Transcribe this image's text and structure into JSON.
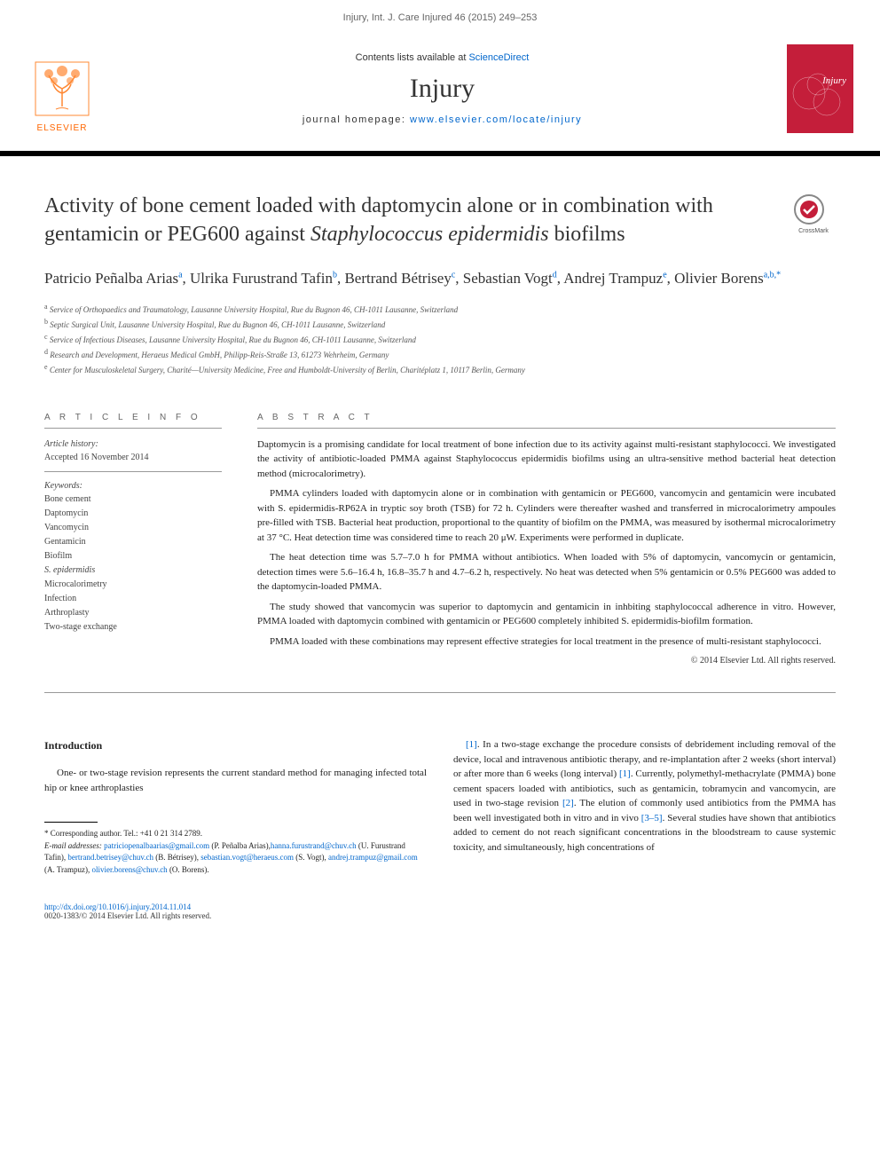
{
  "masthead": {
    "citation": "Injury, Int. J. Care Injured 46 (2015) 249–253"
  },
  "header": {
    "contents_prefix": "Contents lists available at ",
    "contents_link": "ScienceDirect",
    "journal_title": "Injury",
    "homepage_prefix": "journal homepage: ",
    "homepage_url": "www.elsevier.com/locate/injury",
    "elsevier_label": "ELSEVIER",
    "cover_text": "Injury"
  },
  "article": {
    "title_part1": "Activity of bone cement loaded with daptomycin alone or in combination with gentamicin or PEG600 against ",
    "title_italic": "Staphylococcus epidermidis",
    "title_part2": " biofilms",
    "crossmark_label": "CrossMark"
  },
  "authors": [
    {
      "name": "Patricio Peñalba Arias",
      "aff": "a"
    },
    {
      "name": "Ulrika Furustrand Tafin",
      "aff": "b"
    },
    {
      "name": "Bertrand Bétrisey",
      "aff": "c"
    },
    {
      "name": "Sebastian Vogt",
      "aff": "d"
    },
    {
      "name": "Andrej Trampuz",
      "aff": "e"
    },
    {
      "name": "Olivier Borens",
      "aff": "a,b,",
      "corr": "*"
    }
  ],
  "affiliations": [
    {
      "key": "a",
      "text": "Service of Orthopaedics and Traumatology, Lausanne University Hospital, Rue du Bugnon 46, CH-1011 Lausanne, Switzerland"
    },
    {
      "key": "b",
      "text": "Septic Surgical Unit, Lausanne University Hospital, Rue du Bugnon 46, CH-1011 Lausanne, Switzerland"
    },
    {
      "key": "c",
      "text": "Service of Infectious Diseases, Lausanne University Hospital, Rue du Bugnon 46, CH-1011 Lausanne, Switzerland"
    },
    {
      "key": "d",
      "text": "Research and Development, Heraeus Medical GmbH, Philipp-Reis-Straße 13, 61273 Wehrheim, Germany"
    },
    {
      "key": "e",
      "text": "Center for Musculoskeletal Surgery, Charité—University Medicine, Free and Humboldt-University of Berlin, Charitéplatz 1, 10117 Berlin, Germany"
    }
  ],
  "article_info": {
    "heading": "A R T I C L E  I N F O",
    "history_label": "Article history:",
    "accepted": "Accepted 16 November 2014",
    "keywords_label": "Keywords:",
    "keywords": [
      "Bone cement",
      "Daptomycin",
      "Vancomycin",
      "Gentamicin",
      "Biofilm",
      "S. epidermidis",
      "Microcalorimetry",
      "Infection",
      "Arthroplasty",
      "Two-stage exchange"
    ]
  },
  "abstract": {
    "heading": "A B S T R A C T",
    "p1": "Daptomycin is a promising candidate for local treatment of bone infection due to its activity against multi-resistant staphylococci. We investigated the activity of antibiotic-loaded PMMA against Staphylococcus epidermidis biofilms using an ultra-sensitive method bacterial heat detection method (microcalorimetry).",
    "p2": "PMMA cylinders loaded with daptomycin alone or in combination with gentamicin or PEG600, vancomycin and gentamicin were incubated with S. epidermidis-RP62A in tryptic soy broth (TSB) for 72 h. Cylinders were thereafter washed and transferred in microcalorimetry ampoules pre-filled with TSB. Bacterial heat production, proportional to the quantity of biofilm on the PMMA, was measured by isothermal microcalorimetry at 37 °C. Heat detection time was considered time to reach 20 μW. Experiments were performed in duplicate.",
    "p3": "The heat detection time was 5.7–7.0 h for PMMA without antibiotics. When loaded with 5% of daptomycin, vancomycin or gentamicin, detection times were 5.6–16.4 h, 16.8–35.7 h and 4.7–6.2 h, respectively. No heat was detected when 5% gentamicin or 0.5% PEG600 was added to the daptomycin-loaded PMMA.",
    "p4": "The study showed that vancomycin was superior to daptomycin and gentamicin in inhbiting staphylococcal adherence in vitro. However, PMMA loaded with daptomycin combined with gentamicin or PEG600 completely inhibited S. epidermidis-biofilm formation.",
    "p5": "PMMA loaded with these combinations may represent effective strategies for local treatment in the presence of multi-resistant staphylococci.",
    "copyright": "© 2014 Elsevier Ltd. All rights reserved."
  },
  "body": {
    "intro_heading": "Introduction",
    "col1_p1": "One- or two-stage revision represents the current standard method for managing infected total hip or knee arthroplasties",
    "col2_p1": ". In a two-stage exchange the procedure consists of debridement including removal of the device, local and intravenous antibiotic therapy, and re-implantation after 2 weeks (short interval) or after more than 6 weeks (long interval) ",
    "col2_p2": ". Currently, polymethyl-methacrylate (PMMA) bone cement spacers loaded with antibiotics, such as gentamicin, tobramycin and vancomycin, are used in two-stage revision ",
    "col2_p3": ". The elution of commonly used antibiotics from the PMMA has been well investigated both in vitro and in vivo ",
    "col2_p4": ". Several studies have shown that antibiotics added to cement do not reach significant concentrations in the bloodstream to cause systemic toxicity, and simultaneously, high concentrations of",
    "ref1": "[1]",
    "ref1b": "[1]",
    "ref2": "[2]",
    "ref35": "[3–5]"
  },
  "footnotes": {
    "corr_label": "* Corresponding author. Tel.: +41 0 21 314 2789.",
    "email_label": "E-mail addresses:",
    "emails": [
      {
        "email": "patriciopenalbaarias@gmail.com",
        "who": " (P. Peñalba Arias),"
      },
      {
        "email": "hanna.furustrand@chuv.ch",
        "who": " (U. Furustrand Tafin), "
      },
      {
        "email": "bertrand.betrisey@chuv.ch",
        "who": " (B. Bétrisey), "
      },
      {
        "email": "sebastian.vogt@heraeus.com",
        "who": " (S. Vogt), "
      },
      {
        "email": "andrej.trampuz@gmail.com",
        "who": " (A. Trampuz), "
      },
      {
        "email": "olivier.borens@chuv.ch",
        "who": " (O. Borens)."
      }
    ]
  },
  "doi": {
    "url": "http://dx.doi.org/10.1016/j.injury.2014.11.014",
    "issn_line": "0020-1383/© 2014 Elsevier Ltd. All rights reserved."
  },
  "colors": {
    "link": "#0066cc",
    "elsevier_orange": "#ff6600",
    "header_rule": "#000000",
    "cover_bg": "#c41e3a"
  }
}
